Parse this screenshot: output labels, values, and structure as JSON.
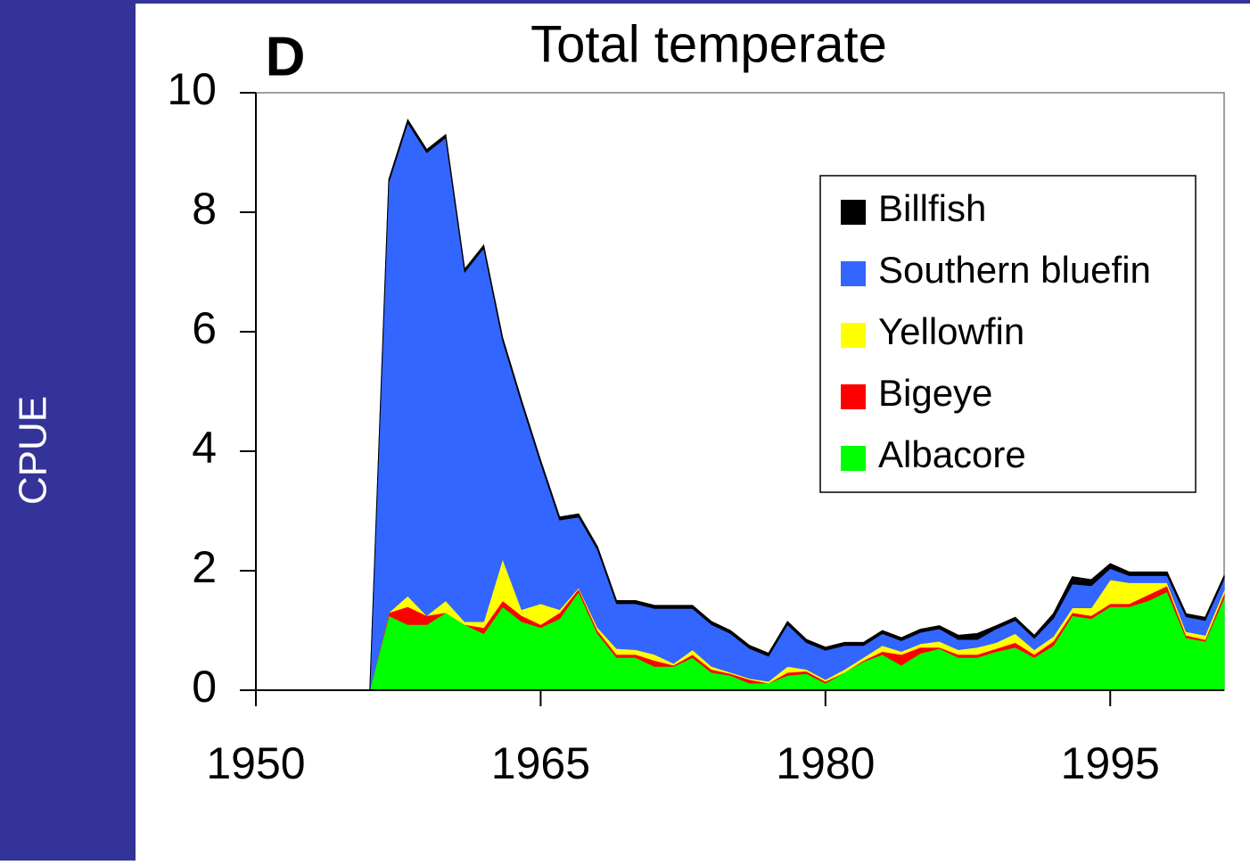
{
  "chart_data": {
    "type": "stacked-area",
    "title": "Total temperate",
    "panel_label": "D",
    "y_label": "CPUE",
    "x": [
      1956,
      1957,
      1958,
      1959,
      1960,
      1961,
      1962,
      1963,
      1964,
      1965,
      1966,
      1967,
      1968,
      1969,
      1970,
      1971,
      1972,
      1973,
      1974,
      1975,
      1976,
      1977,
      1978,
      1979,
      1980,
      1981,
      1982,
      1983,
      1984,
      1985,
      1986,
      1987,
      1988,
      1989,
      1990,
      1991,
      1992,
      1993,
      1994,
      1995,
      1996,
      1997,
      1998,
      1999,
      2000,
      2001
    ],
    "series": [
      {
        "name": "Billfish",
        "color": "#000000",
        "values": [
          0,
          0.05,
          0.05,
          0.05,
          0.05,
          0.05,
          0.05,
          0.05,
          0.05,
          0.05,
          0.05,
          0.05,
          0.05,
          0.05,
          0.05,
          0.05,
          0.05,
          0.05,
          0.05,
          0.05,
          0.05,
          0.05,
          0.05,
          0.05,
          0.05,
          0.05,
          0.05,
          0.05,
          0.05,
          0.05,
          0.05,
          0.07,
          0.1,
          0.05,
          0.05,
          0.05,
          0.08,
          0.12,
          0.1,
          0.08,
          0.06,
          0.06,
          0.06,
          0.05,
          0.05,
          0.05
        ]
      },
      {
        "name": "Southern bluefin",
        "color": "#3366ff",
        "values": [
          0,
          7.2,
          7.92,
          7.75,
          7.75,
          5.85,
          6.25,
          3.65,
          3.45,
          2.35,
          1.5,
          1.18,
          1.3,
          0.75,
          0.77,
          0.77,
          0.92,
          0.69,
          0.7,
          0.65,
          0.5,
          0.42,
          0.7,
          0.45,
          0.49,
          0.4,
          0.2,
          0.2,
          0.18,
          0.19,
          0.21,
          0.17,
          0.13,
          0.23,
          0.22,
          0.19,
          0.3,
          0.4,
          0.37,
          0.19,
          0.12,
          0.12,
          0.12,
          0.25,
          0.25,
          0.19
        ]
      },
      {
        "name": "Yellowfin",
        "color": "#ffff00",
        "values": [
          0,
          0,
          0.18,
          0,
          0.2,
          0.05,
          0.1,
          0.7,
          0.1,
          0.35,
          0.05,
          0.02,
          0.05,
          0.1,
          0.08,
          0.1,
          0.03,
          0.08,
          0.05,
          0.02,
          0.02,
          0.03,
          0.1,
          0.03,
          0.03,
          0.05,
          0.05,
          0.1,
          0.05,
          0.06,
          0.1,
          0.08,
          0.12,
          0.1,
          0.15,
          0.08,
          0.08,
          0.08,
          0.13,
          0.4,
          0.35,
          0.2,
          0.05,
          0.06,
          0.07,
          0.06
        ]
      },
      {
        "name": "Bigeye",
        "color": "#ff0000",
        "values": [
          0,
          0.05,
          0.3,
          0.15,
          0,
          0,
          0.1,
          0.1,
          0.1,
          0.05,
          0.1,
          0.05,
          0.05,
          0.05,
          0.05,
          0.1,
          0.02,
          0.05,
          0.05,
          0.03,
          0.06,
          0,
          0.05,
          0.04,
          0.03,
          0,
          0.02,
          0.05,
          0.18,
          0.1,
          0.02,
          0.05,
          0.05,
          0.05,
          0.08,
          0.05,
          0.07,
          0.05,
          0.05,
          0.05,
          0.05,
          0.1,
          0.1,
          0.04,
          0.03,
          0.07
        ]
      },
      {
        "name": "Albacore",
        "color": "#00ff00",
        "values": [
          0,
          1.25,
          1.1,
          1.1,
          1.3,
          1.1,
          0.95,
          1.4,
          1.15,
          1.05,
          1.2,
          1.65,
          0.95,
          0.55,
          0.55,
          0.4,
          0.4,
          0.55,
          0.3,
          0.25,
          0.12,
          0.12,
          0.25,
          0.28,
          0.12,
          0.3,
          0.48,
          0.6,
          0.42,
          0.62,
          0.7,
          0.55,
          0.55,
          0.65,
          0.72,
          0.55,
          0.75,
          1.25,
          1.2,
          1.4,
          1.4,
          1.5,
          1.65,
          0.88,
          0.82,
          1.55
        ]
      }
    ],
    "xlim": [
      1950,
      2001
    ],
    "xticks": [
      1950,
      1965,
      1980,
      1995
    ],
    "ylim": [
      0,
      10
    ],
    "yticks": [
      0,
      2,
      4,
      6,
      8,
      10
    ]
  }
}
